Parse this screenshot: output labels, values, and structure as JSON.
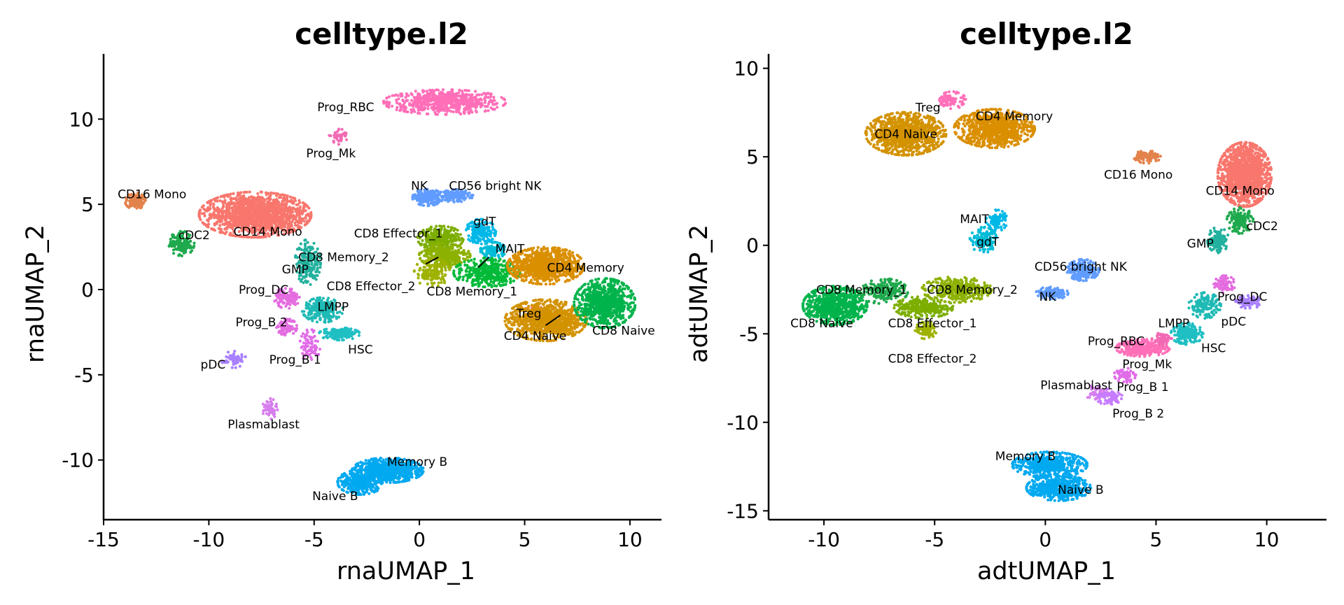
{
  "chart_data": [
    {
      "type": "scatter",
      "title": "celltype.l2",
      "xlabel": "rnaUMAP_1",
      "ylabel": "rnaUMAP_2",
      "xlim": [
        -15,
        11.5
      ],
      "ylim": [
        -13.5,
        13.5
      ],
      "xticks": [
        -15,
        -10,
        -5,
        0,
        5,
        10
      ],
      "xtick_labels": [
        "-15",
        "-10",
        "-5",
        "0",
        "5",
        "10"
      ],
      "yticks": [
        -10,
        -5,
        0,
        5,
        10
      ],
      "ytick_labels": [
        "-10",
        "-5",
        "0",
        "5",
        "10"
      ],
      "grid": false,
      "legend": "none",
      "clusters": [
        {
          "name": "Prog_RBC",
          "color": "#FF6FB8",
          "x": 1.2,
          "y": 11.0,
          "sx": 2.4,
          "sy": 0.6,
          "n": 650
        },
        {
          "name": "Prog_Mk",
          "color": "#F26AB4",
          "x": -3.8,
          "y": 9.0,
          "sx": 0.4,
          "sy": 0.4,
          "n": 40
        },
        {
          "name": "CD16 Mono",
          "color": "#E3834C",
          "x": -13.5,
          "y": 5.2,
          "sx": 0.4,
          "sy": 0.4,
          "n": 120
        },
        {
          "name": "CD14 Mono",
          "color": "#F8766D",
          "x": -7.8,
          "y": 4.4,
          "sx": 2.2,
          "sy": 1.1,
          "n": 1500
        },
        {
          "name": "cDC2",
          "color": "#1FA94D",
          "x": -11.3,
          "y": 2.7,
          "sx": 0.5,
          "sy": 0.6,
          "n": 140
        },
        {
          "name": "GMP",
          "color": "#22B19E",
          "x": -5.3,
          "y": 1.6,
          "sx": 0.5,
          "sy": 1.1,
          "n": 200
        },
        {
          "name": "Prog_DC",
          "color": "#E46CE0",
          "x": -6.3,
          "y": -0.5,
          "sx": 0.5,
          "sy": 0.5,
          "n": 120
        },
        {
          "name": "LMPP",
          "color": "#1FBAB5",
          "x": -4.6,
          "y": -1.2,
          "sx": 0.8,
          "sy": 0.6,
          "n": 250
        },
        {
          "name": "Prog_B 2",
          "color": "#E46CE0",
          "x": -6.3,
          "y": -2.2,
          "sx": 0.4,
          "sy": 0.4,
          "n": 80
        },
        {
          "name": "HSC",
          "color": "#1FBFC3",
          "x": -3.8,
          "y": -2.6,
          "sx": 0.8,
          "sy": 0.3,
          "n": 160
        },
        {
          "name": "Prog_B 1",
          "color": "#E16CE8",
          "x": -5.2,
          "y": -3.3,
          "sx": 0.4,
          "sy": 0.8,
          "n": 80
        },
        {
          "name": "pDC",
          "color": "#A980FF",
          "x": -8.8,
          "y": -4.1,
          "sx": 0.5,
          "sy": 0.4,
          "n": 70
        },
        {
          "name": "Plasmablast",
          "color": "#D77EEE",
          "x": -7.1,
          "y": -7.0,
          "sx": 0.3,
          "sy": 0.5,
          "n": 60
        },
        {
          "name": "Memory B",
          "color": "#00A9F0",
          "x": -1.5,
          "y": -10.6,
          "sx": 1.4,
          "sy": 0.6,
          "n": 700
        },
        {
          "name": "Naive B",
          "color": "#00A9F0",
          "x": -2.8,
          "y": -11.3,
          "sx": 0.9,
          "sy": 0.6,
          "n": 350
        },
        {
          "name": "NK",
          "color": "#619CFF",
          "x": 0.4,
          "y": 5.4,
          "sx": 0.6,
          "sy": 0.4,
          "n": 200
        },
        {
          "name": "CD56 bright NK",
          "color": "#619CFF",
          "x": 1.7,
          "y": 5.5,
          "sx": 0.7,
          "sy": 0.3,
          "n": 150
        },
        {
          "name": "gdT",
          "color": "#00B8E7",
          "x": 2.9,
          "y": 3.4,
          "sx": 0.6,
          "sy": 0.6,
          "n": 180
        },
        {
          "name": "CD8 Effector_1",
          "color": "#7CAE00",
          "x": 1.0,
          "y": 3.0,
          "sx": 0.9,
          "sy": 0.6,
          "n": 300
        },
        {
          "name": "CD8 Memory_2",
          "color": "#8DB100",
          "x": 1.2,
          "y": 2.0,
          "sx": 1.0,
          "sy": 0.6,
          "n": 300
        },
        {
          "name": "MAIT",
          "color": "#00BCD8",
          "x": 3.5,
          "y": 2.3,
          "sx": 0.5,
          "sy": 0.4,
          "n": 120
        },
        {
          "name": "CD8 Effector_2",
          "color": "#9FB200",
          "x": 0.6,
          "y": 1.0,
          "sx": 0.7,
          "sy": 0.7,
          "n": 150
        },
        {
          "name": "CD8 Memory_1",
          "color": "#00BA38",
          "x": 3.2,
          "y": 1.0,
          "sx": 1.3,
          "sy": 0.7,
          "n": 350
        },
        {
          "name": "CD4 Memory",
          "color": "#DA8F00",
          "x": 6.0,
          "y": 1.4,
          "sx": 1.5,
          "sy": 0.9,
          "n": 900
        },
        {
          "name": "Treg",
          "color": "#F77C68",
          "x": 5.5,
          "y": -1.3,
          "sx": 0.4,
          "sy": 0.3,
          "n": 60
        },
        {
          "name": "CD4 Naive",
          "color": "#D39200",
          "x": 6.0,
          "y": -1.8,
          "sx": 1.6,
          "sy": 1.0,
          "n": 900
        },
        {
          "name": "CD8 Naive",
          "color": "#00B34B",
          "x": 8.8,
          "y": -0.8,
          "sx": 1.2,
          "sy": 1.2,
          "n": 800
        }
      ],
      "annotations": [
        {
          "text": "Prog_RBC",
          "x": -3.5,
          "y": 10.7
        },
        {
          "text": "Prog_Mk",
          "x": -4.2,
          "y": 8.0
        },
        {
          "text": "CD16 Mono",
          "x": -12.7,
          "y": 5.6
        },
        {
          "text": "CD14 Mono",
          "x": -7.2,
          "y": 3.4
        },
        {
          "text": "cDC2",
          "x": -10.7,
          "y": 3.2
        },
        {
          "text": "NK",
          "x": 0.0,
          "y": 6.1
        },
        {
          "text": "CD56 bright NK",
          "x": 3.6,
          "y": 6.1
        },
        {
          "text": "gdT",
          "x": 3.1,
          "y": 4.0
        },
        {
          "text": "CD8 Effector_1",
          "x": -1.0,
          "y": 3.3
        },
        {
          "text": "CD8 Memory_2",
          "x": -3.6,
          "y": 1.9
        },
        {
          "text": "MAIT",
          "x": 4.3,
          "y": 2.4
        },
        {
          "text": "GMP",
          "x": -5.9,
          "y": 1.2
        },
        {
          "text": "CD4 Memory",
          "x": 7.9,
          "y": 1.3
        },
        {
          "text": "CD8 Effector_2",
          "x": -2.3,
          "y": 0.2
        },
        {
          "text": "CD8 Memory_1",
          "x": 2.5,
          "y": -0.1
        },
        {
          "text": "Prog_DC",
          "x": -7.4,
          "y": 0.0
        },
        {
          "text": "LMPP",
          "x": -4.1,
          "y": -1.0
        },
        {
          "text": "Treg",
          "x": 5.2,
          "y": -1.4
        },
        {
          "text": "CD8 Naive",
          "x": 9.7,
          "y": -2.4
        },
        {
          "text": "Prog_B 2",
          "x": -7.5,
          "y": -1.9
        },
        {
          "text": "CD4 Naive",
          "x": 5.5,
          "y": -2.7
        },
        {
          "text": "HSC",
          "x": -2.8,
          "y": -3.5
        },
        {
          "text": "Prog_B 1",
          "x": -5.9,
          "y": -4.1
        },
        {
          "text": "pDC",
          "x": -9.8,
          "y": -4.4
        },
        {
          "text": "Plasmablast",
          "x": -7.4,
          "y": -7.9
        },
        {
          "text": "Memory B",
          "x": -0.1,
          "y": -10.1
        },
        {
          "text": "Naive B",
          "x": -4.0,
          "y": -12.1
        }
      ],
      "leaders": [
        {
          "from": [
            0.3,
            1.5
          ],
          "to": [
            0.9,
            1.9
          ]
        },
        {
          "from": [
            2.8,
            1.3
          ],
          "to": [
            3.3,
            1.9
          ]
        },
        {
          "from": [
            6.0,
            -2.1
          ],
          "to": [
            6.7,
            -1.5
          ]
        }
      ]
    },
    {
      "type": "scatter",
      "title": "celltype.l2",
      "xlabel": "adtUMAP_1",
      "ylabel": "adtUMAP_2",
      "xlim": [
        -12.5,
        12.7
      ],
      "ylim": [
        -15.5,
        10.5
      ],
      "xticks": [
        -10,
        -5,
        0,
        5,
        10
      ],
      "xtick_labels": [
        "-10",
        "-5",
        "0",
        "5",
        "10"
      ],
      "yticks": [
        -15,
        -10,
        -5,
        0,
        5,
        10
      ],
      "ytick_labels": [
        "-15",
        "-10",
        "-5",
        "0",
        "5",
        "10"
      ],
      "grid": false,
      "legend": "none",
      "clusters": [
        {
          "name": "CD4 Naive",
          "color": "#D39200",
          "x": -6.3,
          "y": 6.3,
          "sx": 1.5,
          "sy": 1.0,
          "n": 1000
        },
        {
          "name": "CD4 Memory",
          "color": "#DA8F00",
          "x": -2.3,
          "y": 6.6,
          "sx": 1.5,
          "sy": 0.9,
          "n": 900
        },
        {
          "name": "Treg",
          "color": "#FF6FB8",
          "x": -4.2,
          "y": 8.2,
          "sx": 0.5,
          "sy": 0.4,
          "n": 90
        },
        {
          "name": "MAIT",
          "color": "#00B8E7",
          "x": -2.2,
          "y": 1.4,
          "sx": 0.4,
          "sy": 0.5,
          "n": 80
        },
        {
          "name": "gdT",
          "color": "#00BCD8",
          "x": -2.8,
          "y": 0.3,
          "sx": 0.5,
          "sy": 0.6,
          "n": 140
        },
        {
          "name": "CD8 Naive",
          "color": "#00B34B",
          "x": -9.5,
          "y": -3.4,
          "sx": 1.2,
          "sy": 0.9,
          "n": 700
        },
        {
          "name": "CD8 Memory_1",
          "color": "#1FA94D",
          "x": -7.3,
          "y": -2.6,
          "sx": 0.9,
          "sy": 0.6,
          "n": 200
        },
        {
          "name": "CD8 Effector_1",
          "color": "#7CAE00",
          "x": -5.5,
          "y": -3.5,
          "sx": 1.1,
          "sy": 0.5,
          "n": 300
        },
        {
          "name": "CD8 Memory_2",
          "color": "#8DB100",
          "x": -4.0,
          "y": -2.5,
          "sx": 1.3,
          "sy": 0.6,
          "n": 350
        },
        {
          "name": "CD8 Effector_2",
          "color": "#9FB200",
          "x": -5.4,
          "y": -4.8,
          "sx": 0.4,
          "sy": 0.4,
          "n": 100
        },
        {
          "name": "CD56 bright NK",
          "color": "#619CFF",
          "x": 1.7,
          "y": -1.4,
          "sx": 0.6,
          "sy": 0.5,
          "n": 250
        },
        {
          "name": "NK",
          "color": "#619CFF",
          "x": 0.3,
          "y": -2.7,
          "sx": 0.6,
          "sy": 0.3,
          "n": 120
        },
        {
          "name": "CD16 Mono",
          "color": "#E3834C",
          "x": 4.6,
          "y": 5.0,
          "sx": 0.5,
          "sy": 0.3,
          "n": 100
        },
        {
          "name": "CD14 Mono",
          "color": "#F8766D",
          "x": 9.0,
          "y": 4.0,
          "sx": 1.0,
          "sy": 1.5,
          "n": 1400
        },
        {
          "name": "cDC2",
          "color": "#1FA94D",
          "x": 8.8,
          "y": 1.4,
          "sx": 0.5,
          "sy": 0.6,
          "n": 140
        },
        {
          "name": "GMP",
          "color": "#22B19E",
          "x": 7.8,
          "y": 0.3,
          "sx": 0.4,
          "sy": 0.6,
          "n": 120
        },
        {
          "name": "Prog_DC",
          "color": "#E46CE0",
          "x": 8.1,
          "y": -2.2,
          "sx": 0.4,
          "sy": 0.4,
          "n": 80
        },
        {
          "name": "pDC",
          "color": "#A980FF",
          "x": 9.2,
          "y": -3.2,
          "sx": 0.5,
          "sy": 0.3,
          "n": 90
        },
        {
          "name": "LMPP",
          "color": "#1FBAB5",
          "x": 7.2,
          "y": -3.4,
          "sx": 0.6,
          "sy": 0.6,
          "n": 160
        },
        {
          "name": "HSC",
          "color": "#1FBFC3",
          "x": 6.4,
          "y": -5.0,
          "sx": 0.6,
          "sy": 0.5,
          "n": 200
        },
        {
          "name": "Prog_RBC",
          "color": "#FF6FB8",
          "x": 4.4,
          "y": -5.8,
          "sx": 1.0,
          "sy": 0.4,
          "n": 350
        },
        {
          "name": "Prog_Mk",
          "color": "#F26AB4",
          "x": 5.3,
          "y": -5.3,
          "sx": 0.4,
          "sy": 0.3,
          "n": 60
        },
        {
          "name": "Prog_B 1",
          "color": "#E16CE8",
          "x": 3.6,
          "y": -7.3,
          "sx": 0.4,
          "sy": 0.4,
          "n": 60
        },
        {
          "name": "Plasmablast",
          "color": "#D77EEE",
          "x": 2.3,
          "y": -8.3,
          "sx": 0.4,
          "sy": 0.4,
          "n": 50
        },
        {
          "name": "Prog_B 2",
          "color": "#C77CFF",
          "x": 2.9,
          "y": -8.6,
          "sx": 0.5,
          "sy": 0.4,
          "n": 80
        },
        {
          "name": "Memory B",
          "color": "#00A9F0",
          "x": 0.2,
          "y": -12.4,
          "sx": 1.4,
          "sy": 0.6,
          "n": 500
        },
        {
          "name": "Naive B",
          "color": "#00A9F0",
          "x": 0.6,
          "y": -13.7,
          "sx": 1.2,
          "sy": 0.6,
          "n": 500
        }
      ],
      "annotations": [
        {
          "text": "Treg",
          "x": -5.3,
          "y": 7.8
        },
        {
          "text": "CD4 Memory",
          "x": -1.4,
          "y": 7.3
        },
        {
          "text": "CD4 Naive",
          "x": -6.3,
          "y": 6.3
        },
        {
          "text": "CD16 Mono",
          "x": 4.2,
          "y": 4.0
        },
        {
          "text": "CD14 Mono",
          "x": 8.8,
          "y": 3.1
        },
        {
          "text": "MAIT",
          "x": -3.2,
          "y": 1.5
        },
        {
          "text": "cDC2",
          "x": 9.8,
          "y": 1.1
        },
        {
          "text": "gdT",
          "x": -2.6,
          "y": 0.2
        },
        {
          "text": "GMP",
          "x": 7.0,
          "y": 0.1
        },
        {
          "text": "CD56 bright NK",
          "x": 1.6,
          "y": -1.2
        },
        {
          "text": "CD8 Memory_1",
          "x": -8.3,
          "y": -2.5
        },
        {
          "text": "CD8 Memory_2",
          "x": -3.3,
          "y": -2.5
        },
        {
          "text": "Prog_DC",
          "x": 8.9,
          "y": -2.9
        },
        {
          "text": "NK",
          "x": 0.1,
          "y": -2.9
        },
        {
          "text": "CD8 Naive",
          "x": -10.1,
          "y": -4.4
        },
        {
          "text": "CD8 Effector_1",
          "x": -5.1,
          "y": -4.4
        },
        {
          "text": "pDC",
          "x": 8.5,
          "y": -4.3
        },
        {
          "text": "LMPP",
          "x": 5.8,
          "y": -4.4
        },
        {
          "text": "Prog_RBC",
          "x": 3.2,
          "y": -5.4
        },
        {
          "text": "HSC",
          "x": 7.6,
          "y": -5.8
        },
        {
          "text": "CD8 Effector_2",
          "x": -5.1,
          "y": -6.4
        },
        {
          "text": "Prog_Mk",
          "x": 4.6,
          "y": -6.7
        },
        {
          "text": "Plasmablast",
          "x": 1.4,
          "y": -7.9
        },
        {
          "text": "Prog_B 1",
          "x": 4.4,
          "y": -8.0
        },
        {
          "text": "Prog_B 2",
          "x": 4.2,
          "y": -9.5
        },
        {
          "text": "Memory B",
          "x": -0.9,
          "y": -11.9
        },
        {
          "text": "Naive B",
          "x": 1.6,
          "y": -13.8
        }
      ],
      "leaders": []
    }
  ]
}
